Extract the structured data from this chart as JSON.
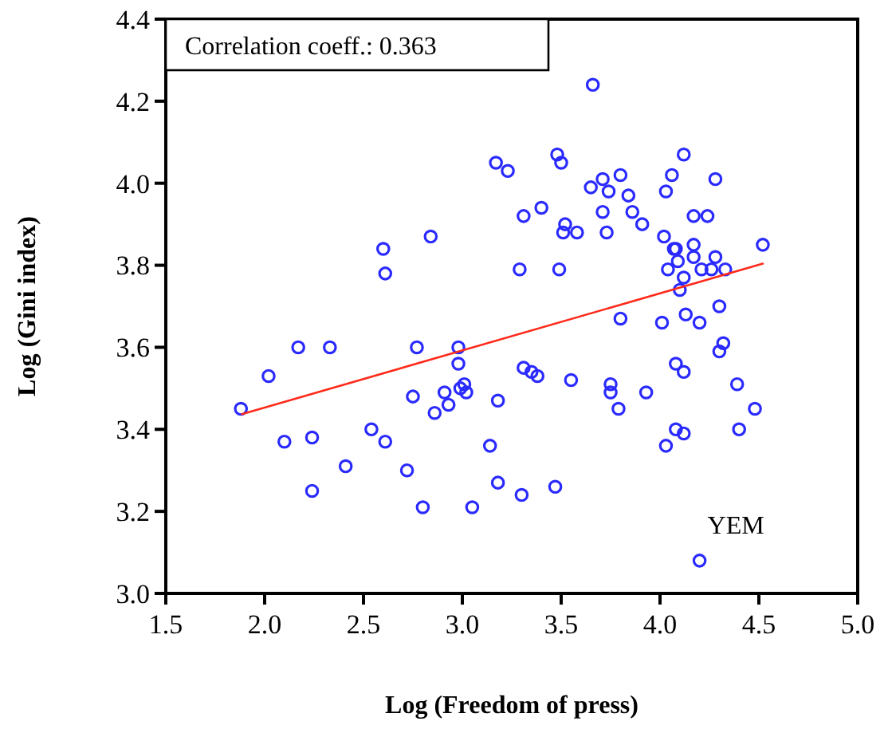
{
  "chart_data": {
    "type": "scatter",
    "xlabel": "Log (Freedom of press)",
    "ylabel": "Log (Gini index)",
    "xlim": [
      1.5,
      5.0
    ],
    "ylim": [
      3.0,
      4.4
    ],
    "xticks": [
      {
        "value": 1.5,
        "label": "1.5"
      },
      {
        "value": 2,
        "label": "2.0"
      },
      {
        "value": 2.5,
        "label": "2.5"
      },
      {
        "value": 3,
        "label": "3.0"
      },
      {
        "value": 3.5,
        "label": "3.5"
      },
      {
        "value": 4,
        "label": "4.0"
      },
      {
        "value": 4.5,
        "label": "4.5"
      },
      {
        "value": 5,
        "label": "5.0"
      }
    ],
    "yticks": [
      {
        "value": 3,
        "label": "3.0"
      },
      {
        "value": 3.2,
        "label": "3.2"
      },
      {
        "value": 3.4,
        "label": "3.4"
      },
      {
        "value": 3.6,
        "label": "3.6"
      },
      {
        "value": 3.8,
        "label": "3.8"
      },
      {
        "value": 4,
        "label": "4.0"
      },
      {
        "value": 4.2,
        "label": "4.2"
      },
      {
        "value": 4.4,
        "label": "4.4"
      }
    ],
    "grid": false,
    "annotations": [
      "Correlation coeff.: 0.363",
      {
        "text": "YEM",
        "x": 4.2,
        "y": 3.084
      }
    ],
    "series": [
      {
        "marker": "circle",
        "color": "#2a2aff",
        "x": [
          1.88,
          2.02,
          2.17,
          2.33,
          2.1,
          2.24,
          2.24,
          2.41,
          2.54,
          2.61,
          2.72,
          2.8,
          2.6,
          2.61,
          2.84,
          2.77,
          2.98,
          2.98,
          2.91,
          2.93,
          2.86,
          2.99,
          3.01,
          3.02,
          3.18,
          2.75,
          3.14,
          3.18,
          3.05,
          3.66,
          3.17,
          3.23,
          3.48,
          3.5,
          4.12,
          3.31,
          3.4,
          3.65,
          3.71,
          3.8,
          4.06,
          4.28,
          3.74,
          3.84,
          4.03,
          3.52,
          3.51,
          3.58,
          3.71,
          3.86,
          3.73,
          3.91,
          4.17,
          4.24,
          4.02,
          4.07,
          4.08,
          4.17,
          4.28,
          4.52,
          4.09,
          4.17,
          4.04,
          4.21,
          4.26,
          4.33,
          4.12,
          4.1,
          3.29,
          3.49,
          4.3,
          4.13,
          3.8,
          4.01,
          4.2,
          4.32,
          4.3,
          4.08,
          4.12,
          4.39,
          4.48,
          4.4,
          4.08,
          4.12,
          4.03,
          3.31,
          3.35,
          3.38,
          3.55,
          3.75,
          3.75,
          3.93,
          3.79,
          3.3,
          3.47,
          4.2
        ],
        "values": [
          3.45,
          3.53,
          3.6,
          3.6,
          3.37,
          3.38,
          3.25,
          3.31,
          3.4,
          3.37,
          3.3,
          3.21,
          3.84,
          3.78,
          3.87,
          3.6,
          3.6,
          3.56,
          3.49,
          3.46,
          3.44,
          3.5,
          3.51,
          3.49,
          3.47,
          3.48,
          3.36,
          3.27,
          3.21,
          4.24,
          4.05,
          4.03,
          4.07,
          4.05,
          4.07,
          3.92,
          3.94,
          3.99,
          4.01,
          4.02,
          4.02,
          4.01,
          3.98,
          3.97,
          3.98,
          3.9,
          3.88,
          3.88,
          3.93,
          3.93,
          3.88,
          3.9,
          3.92,
          3.92,
          3.87,
          3.84,
          3.84,
          3.85,
          3.82,
          3.85,
          3.81,
          3.82,
          3.79,
          3.79,
          3.79,
          3.79,
          3.77,
          3.74,
          3.79,
          3.79,
          3.7,
          3.68,
          3.67,
          3.66,
          3.66,
          3.61,
          3.59,
          3.56,
          3.54,
          3.51,
          3.45,
          3.4,
          3.4,
          3.39,
          3.36,
          3.55,
          3.54,
          3.53,
          3.52,
          3.51,
          3.49,
          3.49,
          3.45,
          3.24,
          3.26,
          3.08
        ]
      },
      {
        "type": "line",
        "marker": "none",
        "color": "#ff2a1a",
        "x": [
          1.885,
          4.52
        ],
        "values": [
          3.437,
          3.804
        ]
      }
    ]
  }
}
